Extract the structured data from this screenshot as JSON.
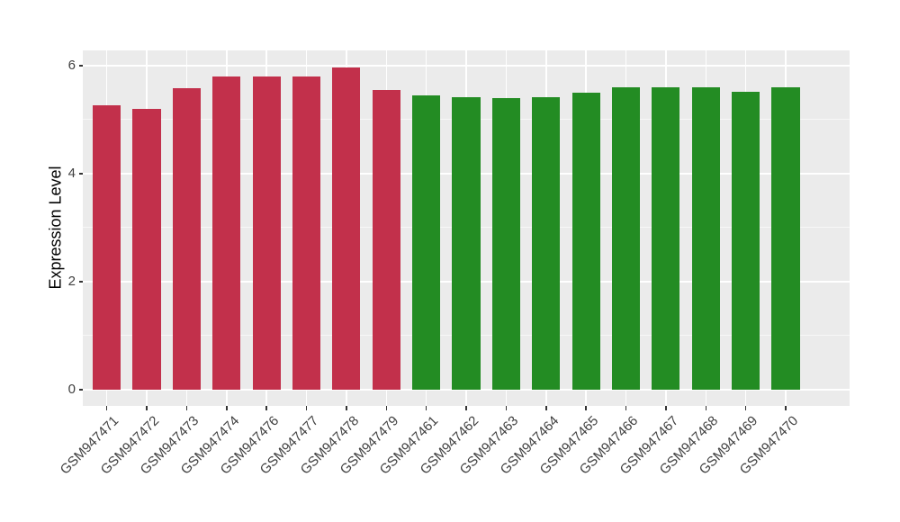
{
  "chart_data": {
    "type": "bar",
    "title": "",
    "xlabel": "",
    "ylabel": "Expression Level",
    "ylim": [
      -0.3,
      6.28
    ],
    "yticks_major": [
      0,
      2,
      4,
      6
    ],
    "yticks_minor": [
      1,
      3,
      5
    ],
    "grid": "on",
    "legend": "none",
    "panel_background": "#EBEBEB",
    "grid_color": "#FFFFFF",
    "bar_width_fraction": 0.7,
    "categories": [
      "GSM947471",
      "GSM947472",
      "GSM947473",
      "GSM947474",
      "GSM947476",
      "GSM947477",
      "GSM947478",
      "GSM947479",
      "GSM947461",
      "GSM947462",
      "GSM947463",
      "GSM947464",
      "GSM947465",
      "GSM947466",
      "GSM947467",
      "GSM947468",
      "GSM947469",
      "GSM947470"
    ],
    "values": [
      5.26,
      5.2,
      5.58,
      5.79,
      5.79,
      5.79,
      5.97,
      5.54,
      5.45,
      5.42,
      5.39,
      5.42,
      5.49,
      5.6,
      5.59,
      5.6,
      5.51,
      5.59
    ],
    "bar_colors": [
      "#C2304B",
      "#C2304B",
      "#C2304B",
      "#C2304B",
      "#C2304B",
      "#C2304B",
      "#C2304B",
      "#C2304B",
      "#238C23",
      "#238C23",
      "#238C23",
      "#238C23",
      "#238C23",
      "#238C23",
      "#238C23",
      "#238C23",
      "#238C23",
      "#238C23"
    ]
  }
}
